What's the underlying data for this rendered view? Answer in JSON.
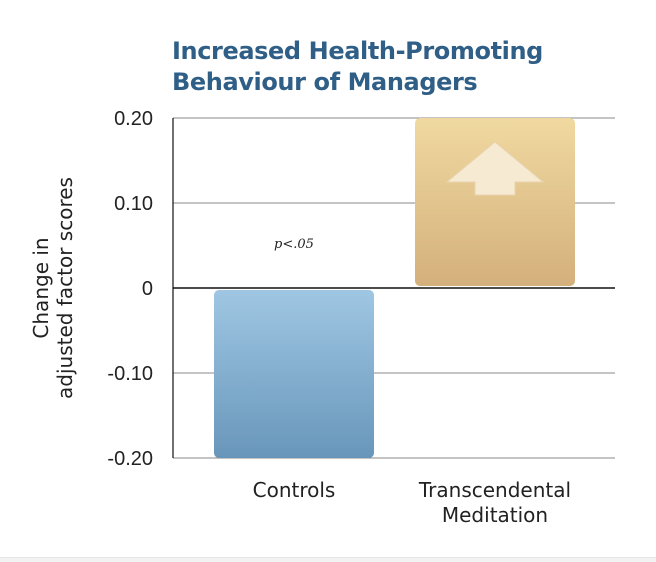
{
  "chart_data": {
    "type": "bar",
    "title_lines": [
      "Increased Health-Promoting",
      "Behaviour of Managers"
    ],
    "ylabel_lines": [
      "Change in",
      "adjusted factor scores"
    ],
    "xlabel": "",
    "categories": [
      {
        "lines": [
          "Controls"
        ]
      },
      {
        "lines": [
          "Transcendental",
          "Meditation"
        ]
      }
    ],
    "values": [
      -0.2,
      0.2
    ],
    "ylim": [
      -0.2,
      0.2
    ],
    "yticks": [
      0.2,
      0.1,
      0,
      -0.1,
      -0.2
    ],
    "ytick_labels": [
      "0.20",
      "0.10",
      "0",
      "-0.10",
      "-0.20"
    ],
    "grid": true,
    "annotation": "p<.05",
    "colors": {
      "title": "#2f5f86",
      "controls_top": "#9fc7e3",
      "controls_bottom": "#6896ba",
      "tm_top": "#f0d9a0",
      "tm_bottom": "#d4b07c",
      "arrow": "#f6ead2",
      "gridline": "#8a8a8a",
      "zero_line": "#111111"
    },
    "icons": [
      "up-arrow-icon"
    ]
  }
}
